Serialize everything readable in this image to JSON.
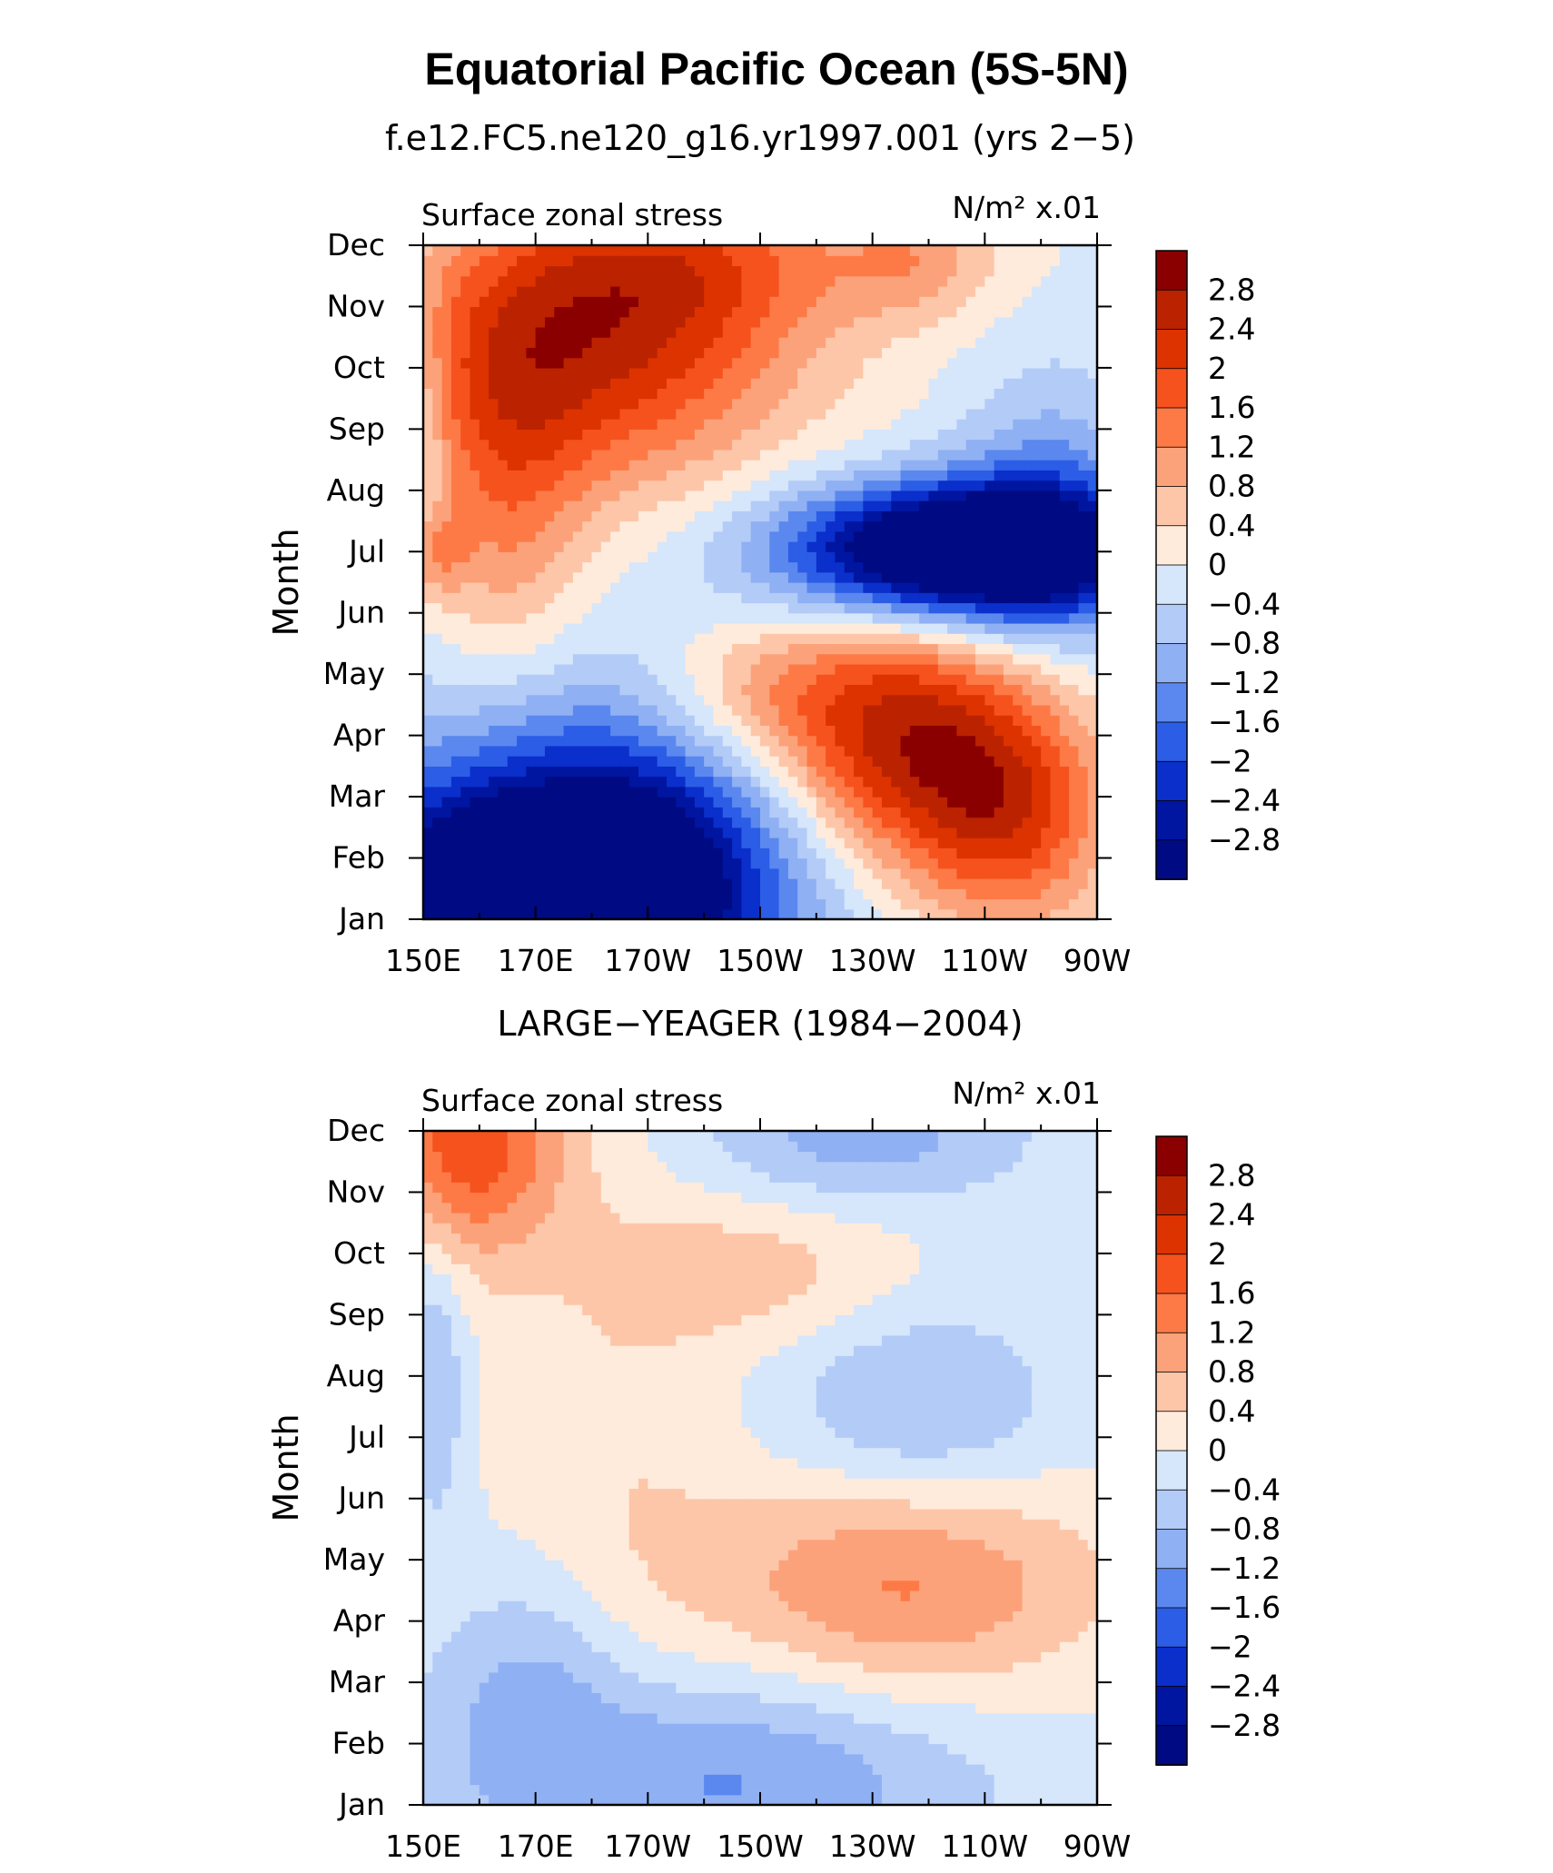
{
  "title": "Equatorial Pacific Ocean (5S-5N)",
  "colorbar": {
    "labels": [
      "2.8",
      "2.4",
      "2",
      "1.6",
      "1.2",
      "0.8",
      "0.4",
      "0",
      "−0.4",
      "−0.8",
      "−1.2",
      "−1.6",
      "−2",
      "−2.4",
      "−2.8"
    ],
    "colors": [
      "#8a0000",
      "#bb2200",
      "#dc3300",
      "#f6521e",
      "#fd7a46",
      "#fca27a",
      "#fdc6a8",
      "#feebdc",
      "#d6e6fb",
      "#b3cbf7",
      "#8fb0f3",
      "#5a88ee",
      "#2c5de6",
      "#0a2fcb",
      "#0015a0",
      "#000a82"
    ]
  },
  "chart_data": [
    {
      "type": "heatmap",
      "subtitle": "f.e12.FC5.ne120_g16.yr1997.001 (yrs 2−5)",
      "left_string": "Surface zonal stress",
      "right_string": "N/m² x.01",
      "ylabel": "Month",
      "xticks": [
        "150E",
        "170E",
        "170W",
        "150W",
        "130W",
        "110W",
        "90W"
      ],
      "yticks": [
        "Jan",
        "Feb",
        "Mar",
        "Apr",
        "May",
        "Jun",
        "Jul",
        "Aug",
        "Sep",
        "Oct",
        "Nov",
        "Dec"
      ],
      "features": [
        {
          "x": 170,
          "y": 0,
          "sx": 24,
          "sy": 1.3,
          "amp": -4.2
        },
        {
          "x": 185,
          "y": 1.6,
          "sx": 30,
          "sy": 1.8,
          "amp": -2.4
        },
        {
          "x": 235,
          "y": 2.8,
          "sx": 18,
          "sy": 1.5,
          "amp": 2.9
        },
        {
          "x": 255,
          "y": 1.6,
          "sx": 12,
          "sy": 1.3,
          "amp": 1.6
        },
        {
          "x": 208,
          "y": 3.6,
          "sx": 15,
          "sy": 0.9,
          "amp": 1.0
        },
        {
          "x": 245,
          "y": 6.0,
          "sx": 22,
          "sy": 0.8,
          "amp": -4.5
        },
        {
          "x": 262,
          "y": 6.6,
          "sx": 12,
          "sy": 1.7,
          "amp": -1.2
        },
        {
          "x": 180,
          "y": 9.3,
          "sx": 24,
          "sy": 1.6,
          "amp": 2.3
        },
        {
          "x": 198,
          "y": 10.8,
          "sx": 22,
          "sy": 1.0,
          "amp": 1.2
        },
        {
          "x": 165,
          "y": 6.8,
          "sx": 10,
          "sy": 2.3,
          "amp": 1.1
        },
        {
          "x": 152,
          "y": 6.0,
          "sx": 4,
          "sy": 0.5,
          "amp": 1.0
        },
        {
          "x": 238,
          "y": 10.8,
          "sx": 10,
          "sy": 0.7,
          "amp": 0.9
        },
        {
          "x": 150,
          "y": 8.0,
          "sx": 3,
          "sy": 1.5,
          "amp": -0.6
        }
      ]
    },
    {
      "type": "heatmap",
      "subtitle": "LARGE−YEAGER (1984−2004)",
      "left_string": "Surface zonal stress",
      "right_string": "N/m² x.01",
      "ylabel": "Month",
      "xticks": [
        "150E",
        "170E",
        "170W",
        "150W",
        "130W",
        "110W",
        "90W"
      ],
      "yticks": [
        "Jan",
        "Feb",
        "Mar",
        "Apr",
        "May",
        "Jun",
        "Jul",
        "Aug",
        "Sep",
        "Oct",
        "Nov",
        "Dec"
      ],
      "features": [
        {
          "x": 158,
          "y": 10.8,
          "sx": 12,
          "sy": 1.3,
          "amp": 1.9
        },
        {
          "x": 235,
          "y": 3.6,
          "sx": 24,
          "sy": 1.3,
          "amp": 1.3
        },
        {
          "x": 210,
          "y": 8.7,
          "sx": 18,
          "sy": 0.9,
          "amp": 0.6
        },
        {
          "x": 200,
          "y": 0.4,
          "sx": 35,
          "sy": 1.3,
          "amp": -1.3
        },
        {
          "x": 170,
          "y": 2.2,
          "sx": 12,
          "sy": 1.3,
          "amp": -0.7
        },
        {
          "x": 228,
          "y": 10.9,
          "sx": 22,
          "sy": 0.8,
          "amp": -1.0
        },
        {
          "x": 238,
          "y": 6.5,
          "sx": 18,
          "sy": 1.2,
          "amp": -0.9
        },
        {
          "x": 152,
          "y": 7.0,
          "sx": 4,
          "sy": 1.8,
          "amp": -0.8
        },
        {
          "x": 185,
          "y": 5.5,
          "sx": 14,
          "sy": 4.0,
          "amp": 0.35
        }
      ]
    }
  ]
}
